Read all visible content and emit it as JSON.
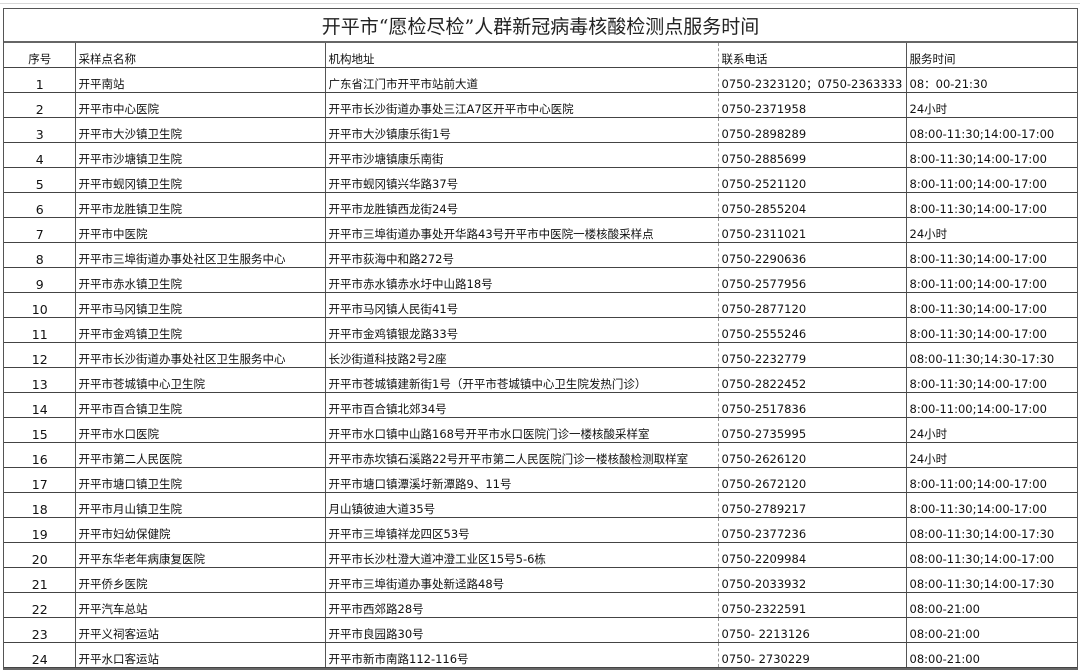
{
  "title": "开平市“愿检尽检”人群新冠病毒核酸检测点服务时间",
  "headers": [
    "序号",
    "采样点名称",
    "机构地址",
    "联系电话",
    "服务时间"
  ],
  "rows": [
    [
      "1",
      "开平南站",
      "广东省江门市开平市站前大道",
      "0750-2323120；0750-2363333",
      "08：00-21:30"
    ],
    [
      "2",
      "开平市中心医院",
      "开平市长沙街道办事处三江A7区开平市中心医院",
      "0750-2371958",
      "24小时"
    ],
    [
      "3",
      "开平市大沙镇卫生院",
      "开平市大沙镇康乐街1号",
      "0750-2898289",
      "08:00-11:30;14:00-17:00"
    ],
    [
      "4",
      "开平市沙塘镇卫生院",
      "开平市沙塘镇康乐南街",
      "0750-2885699",
      "8:00-11:30;14:00-17:00"
    ],
    [
      "5",
      "开平市蚬冈镇卫生院",
      "开平市蚬冈镇兴华路37号",
      "0750-2521120",
      "8:00-11:00;14:00-17:00"
    ],
    [
      "6",
      "开平市龙胜镇卫生院",
      "开平市龙胜镇西龙街24号",
      "0750-2855204",
      "8:00-11:30;14:00-17:00"
    ],
    [
      "7",
      "开平市中医院",
      "开平市三埠街道办事处开华路43号开平市中医院一楼核酸采样点",
      "0750-2311021",
      "24小时"
    ],
    [
      "8",
      "开平市三埠街道办事处社区卫生服务中心",
      "开平市荻海中和路272号",
      "0750-2290636",
      "8:00-11:30;14:00-17:00"
    ],
    [
      "9",
      "开平市赤水镇卫生院",
      "开平市赤水镇赤水圩中山路18号",
      "0750-2577956",
      "8:00-11:00;14:00-17:00"
    ],
    [
      "10",
      "开平市马冈镇卫生院",
      "开平市马冈镇人民街41号",
      "0750-2877120",
      "8:00-11:30;14:00-17:00"
    ],
    [
      "11",
      "开平市金鸡镇卫生院",
      "开平市金鸡镇银龙路33号",
      "0750-2555246",
      "8:00-11:30;14:00-17:00"
    ],
    [
      "12",
      "开平市长沙街道办事处社区卫生服务中心",
      "长沙街道科技路2号2座",
      "0750-2232779",
      "08:00-11:30;14:30-17:30"
    ],
    [
      "13",
      "开平市苍城镇中心卫生院",
      "开平市苍城镇建新街1号（开平市苍城镇中心卫生院发热门诊）",
      "0750-2822452",
      "8:00-11:30;14:00-17:00"
    ],
    [
      "14",
      "开平市百合镇卫生院",
      "开平市百合镇北郊34号",
      "0750-2517836",
      "8:00-11:00;14:00-17:00"
    ],
    [
      "15",
      "开平市水口医院",
      "开平市水口镇中山路168号开平市水口医院门诊一楼核酸采样室",
      "0750-2735995",
      "24小时"
    ],
    [
      "16",
      "开平市第二人民医院",
      "开平市赤坎镇石溪路22号开平市第二人民医院门诊一楼核酸检测取样室",
      "0750-2626120",
      "24小时"
    ],
    [
      "17",
      "开平市塘口镇卫生院",
      "开平市塘口镇潭溪圩新潭路9、11号",
      "0750-2672120",
      "8:00-11:00;14:00-17:00"
    ],
    [
      "18",
      "开平市月山镇卫生院",
      "月山镇彼迪大道35号",
      "0750-2789217",
      "8:00-11:30;14:00-17:00"
    ],
    [
      "19",
      "开平市妇幼保健院",
      "开平市三埠镇祥龙四区53号",
      "0750-2377236",
      "08:00-11:30;14:00-17:30"
    ],
    [
      "20",
      "开平东华老年病康复医院",
      "开平市长沙杜澄大道冲澄工业区15号5-6栋",
      "0750-2209984",
      "08:00-11:30;14:00-17:00"
    ],
    [
      "21",
      "开平侨乡医院",
      "开平市三埠街道办事处新迳路48号",
      "0750-2033932",
      "08:00-11:30;14:00-17:30"
    ],
    [
      "22",
      "开平汽车总站",
      "开平市西郊路28号",
      "0750-2322591",
      "08:00-21:00"
    ],
    [
      "23",
      "开平义祠客运站",
      "开平市良园路30号",
      "0750- 2213126",
      "08:00-21:00"
    ],
    [
      "24",
      "开平水口客运站",
      "开平市新市南路112-116号",
      "0750- 2730229",
      "08:00-21:00"
    ]
  ]
}
